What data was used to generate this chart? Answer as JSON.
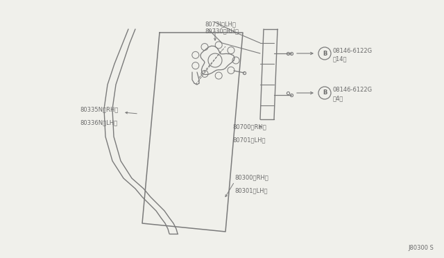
{
  "bg_color": "#f0f0eb",
  "line_color": "#7a7a7a",
  "text_color": "#6a6a6a",
  "diagram_id": "J80300 S",
  "labels": {
    "weatherstrip_line1": "80335N〈RH〉",
    "weatherstrip_line2": "80336N〈LH〉",
    "glass_line1": "80300〈RH〉",
    "glass_line2": "80301〈LH〉",
    "regulator_line1": "80700〈RH〉",
    "regulator_line2": "80701〈LH〉",
    "motor_line1": "80730〈RH〉",
    "motor_line2": "8073I〈LH〉",
    "bolt_part": "08146-6122G",
    "bolt1_qty": "（4）",
    "bolt2_qty": "（14）"
  }
}
